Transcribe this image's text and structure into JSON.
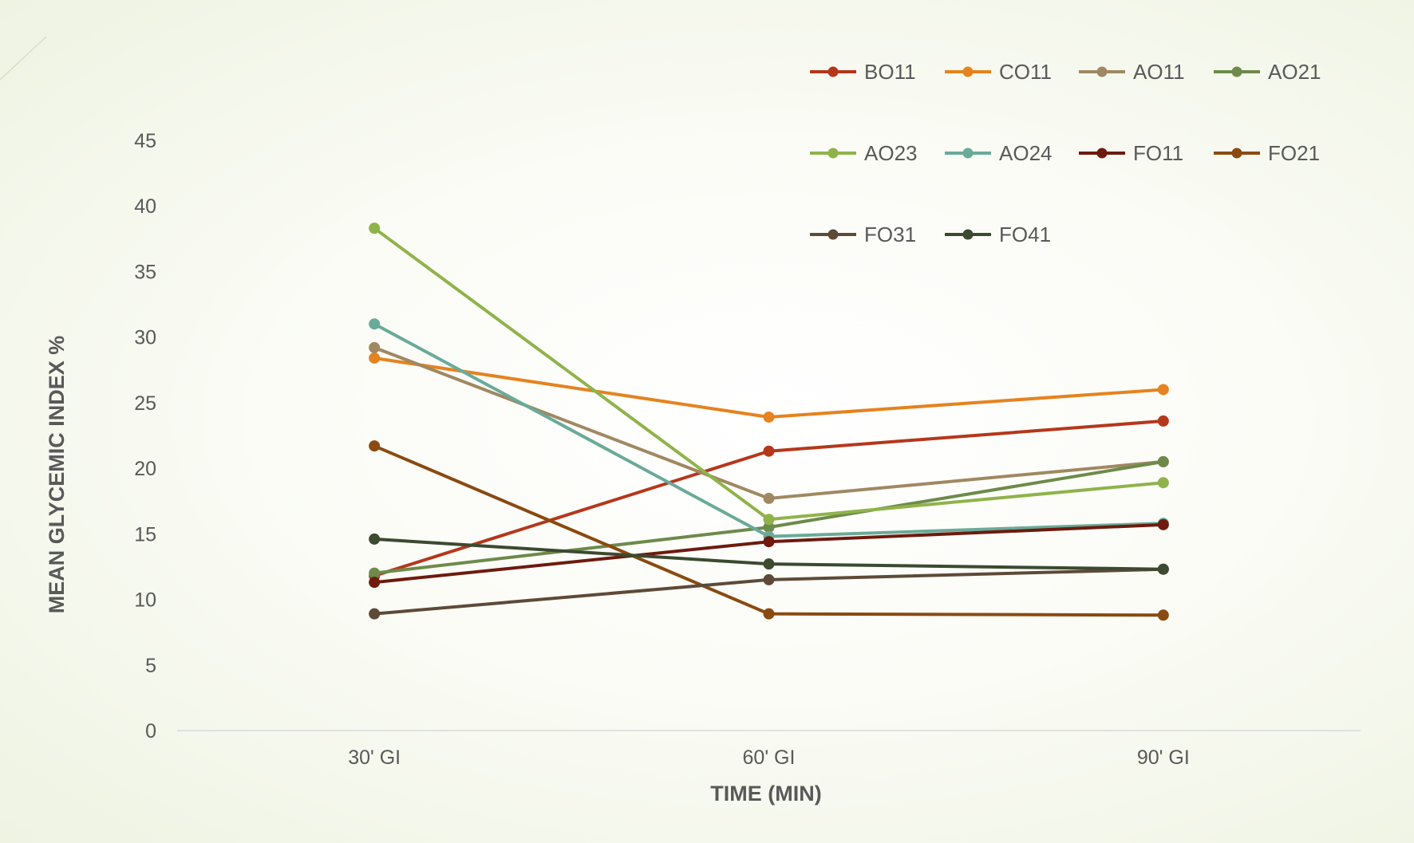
{
  "chart_data": {
    "type": "line",
    "title": "",
    "xlabel": "TIME (MIN)",
    "ylabel": "MEAN GLYCEMIC INDEX %",
    "categories": [
      "30' GI",
      "60' GI",
      "90' GI"
    ],
    "ylim": [
      0,
      45
    ],
    "yticks": [
      0,
      5,
      10,
      15,
      20,
      25,
      30,
      35,
      40,
      45
    ],
    "grid": false,
    "legend_position": "top-right",
    "series": [
      {
        "name": "BO11",
        "color": "#b5371c",
        "values": [
          11.8,
          21.3,
          23.6
        ]
      },
      {
        "name": "CO11",
        "color": "#e5831f",
        "values": [
          28.4,
          23.9,
          26.0
        ]
      },
      {
        "name": "AO11",
        "color": "#a08862",
        "values": [
          29.2,
          17.7,
          20.5
        ]
      },
      {
        "name": "AO21",
        "color": "#6d8a4a",
        "values": [
          12.0,
          15.5,
          20.5
        ]
      },
      {
        "name": "AO23",
        "color": "#8fb34a",
        "values": [
          38.3,
          16.1,
          18.9
        ]
      },
      {
        "name": "AO24",
        "color": "#6aaa98",
        "values": [
          31.0,
          14.8,
          15.8
        ]
      },
      {
        "name": "FO11",
        "color": "#6e1a0e",
        "values": [
          11.3,
          14.4,
          15.7
        ]
      },
      {
        "name": "FO21",
        "color": "#8a4a10",
        "values": [
          21.7,
          8.9,
          8.8
        ]
      },
      {
        "name": "FO31",
        "color": "#5e4a38",
        "values": [
          8.9,
          11.5,
          12.3
        ]
      },
      {
        "name": "FO41",
        "color": "#3b4a30",
        "values": [
          14.6,
          12.7,
          12.3
        ]
      }
    ]
  }
}
